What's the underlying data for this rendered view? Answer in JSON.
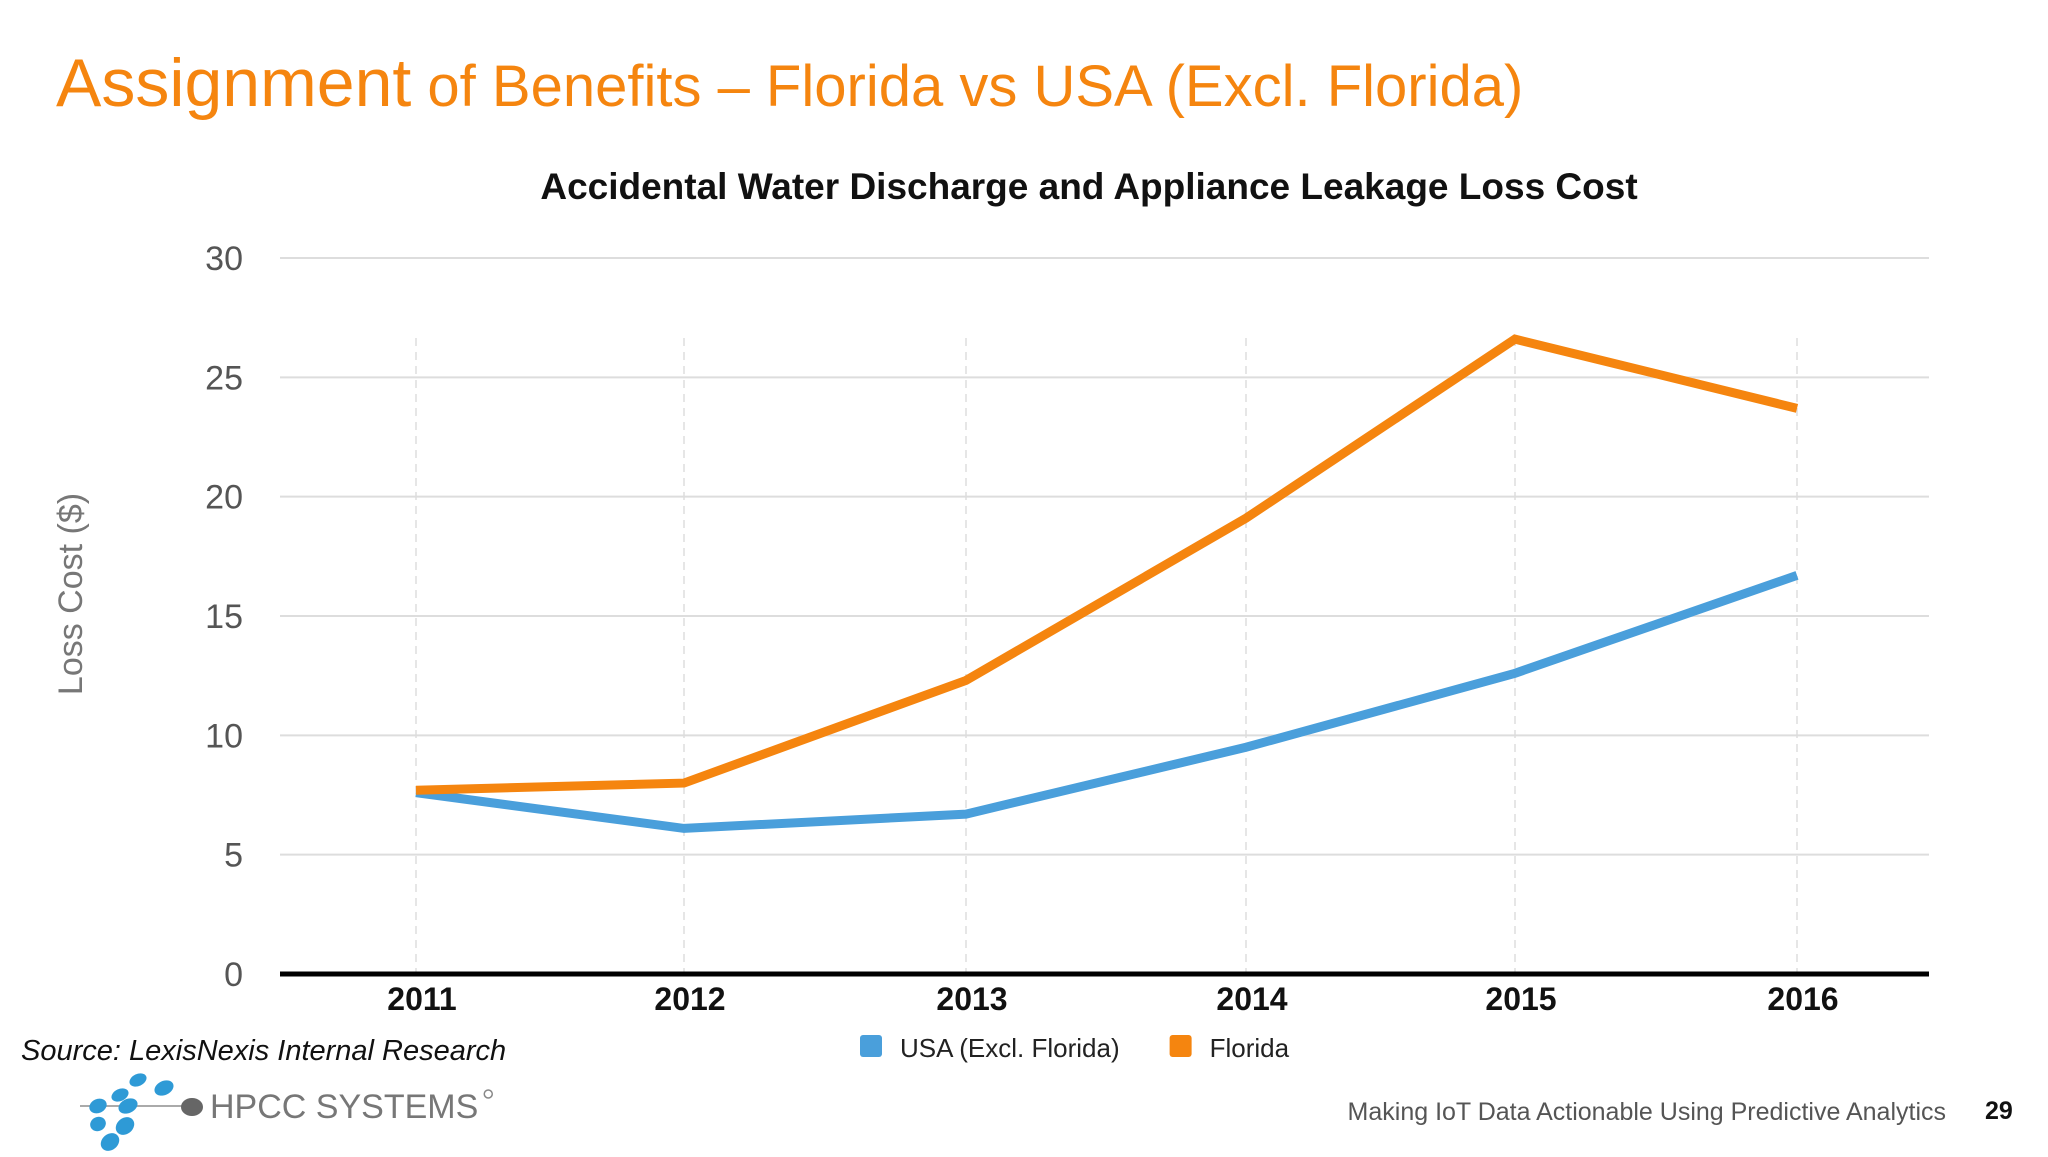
{
  "slide": {
    "title_first": "Assignment",
    "title_rest": " of Benefits – Florida vs USA (Excl. Florida)",
    "source": "Source: LexisNexis Internal Research",
    "footer": "Making IoT Data Actionable Using Predictive Analytics",
    "page_number": "29",
    "logo_text": "HPCC SYSTEMS",
    "accent_color": "#f5850f"
  },
  "chart_data": {
    "type": "line",
    "title": "Accidental Water Discharge and Appliance Leakage Loss Cost",
    "xlabel": "",
    "ylabel": "Loss Cost ($)",
    "categories": [
      "2011",
      "2012",
      "2013",
      "2014",
      "2015",
      "2016"
    ],
    "ylim": [
      0,
      30
    ],
    "yticks": [
      0,
      5,
      10,
      15,
      20,
      25,
      30
    ],
    "grid": true,
    "legend_position": "bottom",
    "series": [
      {
        "name": "USA (Excl. Florida)",
        "color": "#4a9fdb",
        "values": [
          7.6,
          6.1,
          6.7,
          9.5,
          12.6,
          16.7
        ]
      },
      {
        "name": "Florida",
        "color": "#f5850f",
        "values": [
          7.7,
          8.0,
          12.3,
          19.1,
          26.6,
          23.7
        ]
      }
    ]
  }
}
